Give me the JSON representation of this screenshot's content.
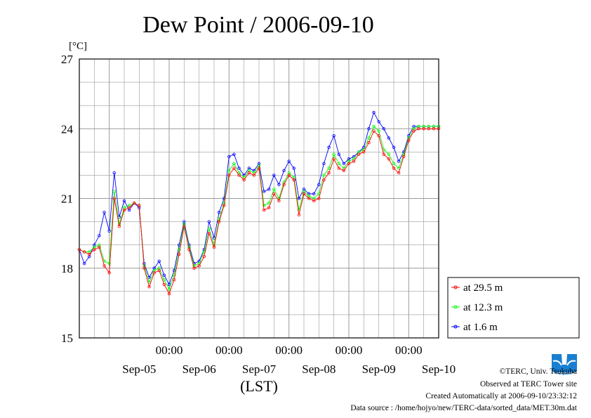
{
  "chart_data": {
    "type": "line",
    "title": "Dew Point / 2006-09-10",
    "ylabel": "[°C]",
    "xlabel": "(LST)",
    "ylim": [
      15,
      27
    ],
    "yticks": [
      15,
      18,
      21,
      24,
      27
    ],
    "grid": true,
    "legend_position": "bottom-right outside",
    "x_time_labels": [
      "00:00",
      "00:00",
      "00:00",
      "00:00",
      "00:00"
    ],
    "x_date_labels": [
      "Sep-05",
      "Sep-06",
      "Sep-07",
      "Sep-08",
      "Sep-09",
      "Sep-10"
    ],
    "x_unit": "hours since 2006-09-04 12:00 LST",
    "xlim": [
      0,
      144
    ],
    "series": [
      {
        "name": "at 29.5 m",
        "color": "#ff0000",
        "x": [
          0,
          2,
          4,
          6,
          8,
          10,
          12,
          14,
          16,
          18,
          20,
          22,
          24,
          26,
          28,
          30,
          32,
          34,
          36,
          38,
          40,
          42,
          44,
          46,
          48,
          50,
          52,
          54,
          56,
          58,
          60,
          62,
          64,
          66,
          68,
          70,
          72,
          74,
          76,
          78,
          80,
          82,
          84,
          86,
          88,
          90,
          92,
          94,
          96,
          98,
          100,
          102,
          104,
          106,
          108,
          110,
          112,
          114,
          116,
          118,
          120,
          122,
          124,
          126,
          128,
          130,
          132,
          134,
          136,
          138,
          140,
          142,
          144
        ],
        "values": [
          18.8,
          18.7,
          18.6,
          18.8,
          18.9,
          18.1,
          17.8,
          21.0,
          19.8,
          20.5,
          20.6,
          20.8,
          20.7,
          18.0,
          17.2,
          17.8,
          17.9,
          17.3,
          16.9,
          17.5,
          18.6,
          19.8,
          18.8,
          18.0,
          18.1,
          18.5,
          19.5,
          18.9,
          20.0,
          20.7,
          22.0,
          22.3,
          22.0,
          21.8,
          22.1,
          22.0,
          22.3,
          20.5,
          20.6,
          21.2,
          20.9,
          21.6,
          22.0,
          21.8,
          20.3,
          21.2,
          21.0,
          20.9,
          21.0,
          21.8,
          22.1,
          22.7,
          22.3,
          22.2,
          22.5,
          22.6,
          22.9,
          23.0,
          23.4,
          23.9,
          23.7,
          22.9,
          22.7,
          22.3,
          22.1,
          22.8,
          23.5,
          23.9,
          24.0,
          24.0,
          24.0,
          24.0,
          24.0
        ]
      },
      {
        "name": "at 12.3 m",
        "color": "#00ff00",
        "x": [
          0,
          2,
          4,
          6,
          8,
          10,
          12,
          14,
          16,
          18,
          20,
          22,
          24,
          26,
          28,
          30,
          32,
          34,
          36,
          38,
          40,
          42,
          44,
          46,
          48,
          50,
          52,
          54,
          56,
          58,
          60,
          62,
          64,
          66,
          68,
          70,
          72,
          74,
          76,
          78,
          80,
          82,
          84,
          86,
          88,
          90,
          92,
          94,
          96,
          98,
          100,
          102,
          104,
          106,
          108,
          110,
          112,
          114,
          116,
          118,
          120,
          122,
          124,
          126,
          128,
          130,
          132,
          134,
          136,
          138,
          140,
          142,
          144
        ],
        "values": [
          18.8,
          18.7,
          18.7,
          18.9,
          19.0,
          18.3,
          18.2,
          21.3,
          19.9,
          20.6,
          20.7,
          20.8,
          20.7,
          18.1,
          17.4,
          17.9,
          18.0,
          17.5,
          17.1,
          17.7,
          18.8,
          19.9,
          18.9,
          18.1,
          18.2,
          18.7,
          19.7,
          19.0,
          20.1,
          20.8,
          22.2,
          22.5,
          22.1,
          21.9,
          22.2,
          22.1,
          22.4,
          20.7,
          20.8,
          21.4,
          21.0,
          21.7,
          22.1,
          21.9,
          20.5,
          21.3,
          21.1,
          21.0,
          21.2,
          22.0,
          22.3,
          22.9,
          22.5,
          22.3,
          22.6,
          22.7,
          23.0,
          23.1,
          23.6,
          24.1,
          23.9,
          23.1,
          22.9,
          22.5,
          22.3,
          22.9,
          23.6,
          24.0,
          24.1,
          24.1,
          24.1,
          24.1,
          24.1
        ]
      },
      {
        "name": "at 1.6 m",
        "color": "#0000ff",
        "x": [
          0,
          2,
          4,
          6,
          8,
          10,
          12,
          14,
          16,
          18,
          20,
          22,
          24,
          26,
          28,
          30,
          32,
          34,
          36,
          38,
          40,
          42,
          44,
          46,
          48,
          50,
          52,
          54,
          56,
          58,
          60,
          62,
          64,
          66,
          68,
          70,
          72,
          74,
          76,
          78,
          80,
          82,
          84,
          86,
          88,
          90,
          92,
          94,
          96,
          98,
          100,
          102,
          104,
          106,
          108,
          110,
          112,
          114,
          116,
          118,
          120,
          122,
          124,
          126,
          128,
          130,
          132,
          134,
          136,
          138,
          140,
          142,
          144
        ],
        "values": [
          18.8,
          18.2,
          18.5,
          19.0,
          19.4,
          20.4,
          19.6,
          22.1,
          20.2,
          20.9,
          20.5,
          20.8,
          20.6,
          18.2,
          17.6,
          18.0,
          18.3,
          17.7,
          17.3,
          17.9,
          19.0,
          20.0,
          19.0,
          18.2,
          18.3,
          18.8,
          20.0,
          19.3,
          20.4,
          21.0,
          22.8,
          22.9,
          22.3,
          22.0,
          22.3,
          22.2,
          22.5,
          21.3,
          21.4,
          22.0,
          21.6,
          22.2,
          22.6,
          22.3,
          21.0,
          21.4,
          21.2,
          21.2,
          21.6,
          22.5,
          23.2,
          23.7,
          22.9,
          22.5,
          22.7,
          22.8,
          23.0,
          23.2,
          24.0,
          24.7,
          24.3,
          24.0,
          23.6,
          23.2,
          22.6,
          23.0,
          23.7,
          24.1,
          24.1,
          24.1,
          24.1,
          24.1,
          24.1
        ]
      }
    ]
  },
  "logo": {
    "text": "TERC",
    "color": "#1a7fd1"
  },
  "credits": {
    "line1": "©TERC, Univ. Tsukuba",
    "line2": "Observed at TERC Tower site",
    "line3": "Created Automatically at 2006-09-10/23:32:12",
    "line4": "Data source : /home/hojyo/new/TERC-data/sorted_data/MET.30m.dat"
  }
}
